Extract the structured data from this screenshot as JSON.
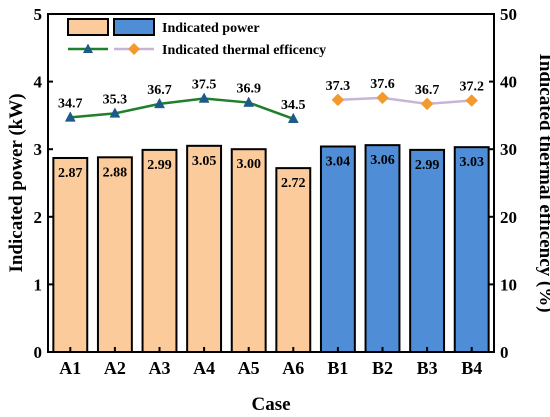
{
  "chart_data": {
    "type": "bar",
    "categories": [
      "A1",
      "A2",
      "A3",
      "A4",
      "A5",
      "A6",
      "B1",
      "B2",
      "B3",
      "B4"
    ],
    "xlabel": "Case",
    "ylabel": "Indicated power (kW)",
    "y2label": "Indicated thermal efficency (%)",
    "ylim": [
      0,
      5
    ],
    "y2lim": [
      0,
      50
    ],
    "yticks": [
      "0",
      "1",
      "2",
      "3",
      "4",
      "5"
    ],
    "y2ticks": [
      "0",
      "10",
      "20",
      "30",
      "40",
      "50"
    ],
    "legend_position": "top-left",
    "grid": false,
    "series": [
      {
        "name": "Indicated power",
        "type": "bar",
        "axis": "left",
        "values": [
          2.87,
          2.88,
          2.99,
          3.05,
          3.0,
          2.72,
          3.04,
          3.06,
          2.99,
          3.03
        ],
        "labels": [
          "2.87",
          "2.88",
          "2.99",
          "3.05",
          "3.00",
          "2.72",
          "3.04",
          "3.06",
          "2.99",
          "3.03"
        ],
        "group_colors": {
          "A": "#fbcb9c",
          "B": "#4f8ed6"
        }
      },
      {
        "name": "Indicated thermal efficency",
        "type": "line",
        "axis": "right",
        "values": [
          34.7,
          35.3,
          36.7,
          37.5,
          36.9,
          34.5,
          37.3,
          37.6,
          36.7,
          37.2
        ],
        "labels": [
          "34.7",
          "35.3",
          "36.7",
          "37.5",
          "36.9",
          "34.5",
          "37.3",
          "37.6",
          "36.7",
          "37.2"
        ],
        "group_colors": {
          "A": "#1f7f2d",
          "B": "#c8b4d8"
        },
        "marker_colors": {
          "A": "#1c5a8a",
          "B": "#f39a2d"
        }
      }
    ]
  }
}
